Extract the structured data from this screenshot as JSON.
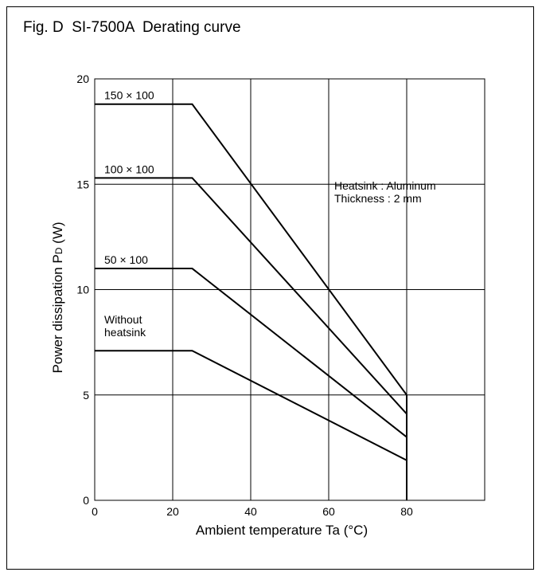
{
  "chart_data": {
    "type": "line",
    "title": "Fig. D  SI-7500A  Derating curve",
    "xlabel": "Ambient temperature Ta (°C)",
    "ylabel_main": "Power dissipation P",
    "ylabel_sub": "D",
    "ylabel_unit": " (W)",
    "xlim": [
      0,
      100
    ],
    "ylim": [
      0,
      20
    ],
    "grid": true,
    "xticks": [
      0,
      20,
      40,
      60,
      80
    ],
    "yticks": [
      0,
      5,
      10,
      15,
      20
    ],
    "series": [
      {
        "name": "150 × 100",
        "x": [
          0,
          25,
          80
        ],
        "y": [
          18.8,
          18.8,
          5.0
        ]
      },
      {
        "name": "100 × 100",
        "x": [
          0,
          25,
          80
        ],
        "y": [
          15.3,
          15.3,
          4.1
        ]
      },
      {
        "name": "50 × 100",
        "x": [
          0,
          25,
          80
        ],
        "y": [
          11.0,
          11.0,
          3.0
        ]
      },
      {
        "name_lines": [
          "Without",
          "heatsink"
        ],
        "x": [
          0,
          25,
          80
        ],
        "y": [
          7.1,
          7.1,
          1.9
        ]
      }
    ],
    "annotation": [
      "Heatsink : Aluminum",
      "Thickness : 2 mm"
    ]
  }
}
